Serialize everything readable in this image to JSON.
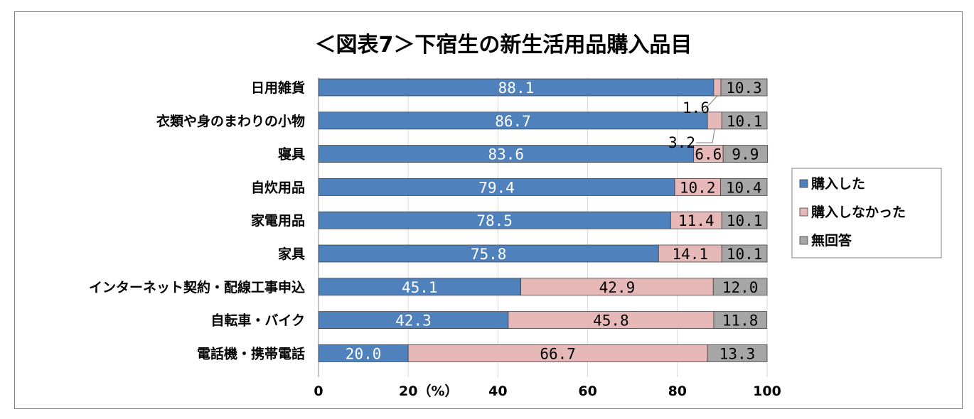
{
  "chart_data": {
    "type": "bar",
    "stacked": true,
    "orientation": "horizontal",
    "title": "＜図表7＞下宿生の新生活用品購入品目",
    "xlabel": "（%）",
    "xlim": [
      0,
      100
    ],
    "x_ticks": [
      "0",
      "20",
      "40",
      "60",
      "80",
      "100"
    ],
    "grid": true,
    "legend_position": "right",
    "categories": [
      "日用雑貨",
      "衣類や身のまわりの小物",
      "寝具",
      "自炊用品",
      "家電用品",
      "家具",
      "インターネット契約・配線工事申込",
      "自転車・バイク",
      "電話機・携帯電話"
    ],
    "series": [
      {
        "name": "購入した",
        "color": "#4f81bd",
        "values": [
          88.1,
          86.7,
          83.6,
          79.4,
          78.5,
          75.8,
          45.1,
          42.3,
          20.0
        ],
        "labels": [
          "88.1",
          "86.7",
          "83.6",
          "79.4",
          "78.5",
          "75.8",
          "45.1",
          "42.3",
          "20.0"
        ]
      },
      {
        "name": "購入しなかった",
        "color": "#e6b9b8",
        "values": [
          1.6,
          3.2,
          6.6,
          10.2,
          11.4,
          14.1,
          42.9,
          45.8,
          66.7
        ],
        "labels": [
          "",
          "",
          "6.6",
          "10.2",
          "11.4",
          "14.1",
          "42.9",
          "45.8",
          "66.7"
        ]
      },
      {
        "name": "無回答",
        "color": "#a6a6a6",
        "values": [
          10.3,
          10.1,
          9.9,
          10.4,
          10.1,
          10.1,
          12.0,
          11.8,
          13.3
        ],
        "labels": [
          "10.3",
          "10.1",
          "9.9",
          "10.4",
          "10.1",
          "10.1",
          "12.0",
          "11.8",
          "13.3"
        ]
      }
    ],
    "callouts": [
      "1.6",
      "3.2"
    ]
  }
}
